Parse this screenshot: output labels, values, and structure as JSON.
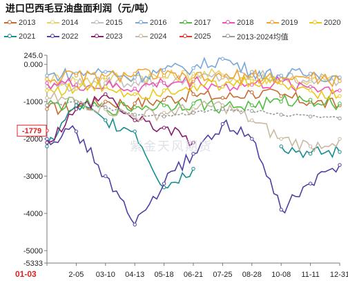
{
  "page": {
    "title": "进口巴西毛豆油盘面利润（元/吨）",
    "watermark": "紫金天风期货"
  },
  "colors": {
    "2013": "#c86a2e",
    "2014": "#e7d266",
    "2015": "#c0c0c0",
    "2016": "#7aa6d8",
    "2017": "#4fbd3e",
    "2018": "#f04fb6",
    "2019": "#f2a52f",
    "2020": "#e9c917",
    "2021": "#148e8e",
    "2022": "#4f3fa3",
    "2023": "#8a1b6e",
    "2024": "#c9b9a0",
    "2025": "#e23a2a",
    "2013-2024均值": "#9a9a9a"
  },
  "legend": [
    {
      "key": "2013",
      "label": "2013"
    },
    {
      "key": "2014",
      "label": "2014"
    },
    {
      "key": "2015",
      "label": "2015"
    },
    {
      "key": "2016",
      "label": "2016"
    },
    {
      "key": "2017",
      "label": "2017"
    },
    {
      "key": "2018",
      "label": "2018"
    },
    {
      "key": "2019",
      "label": "2019"
    },
    {
      "key": "2020",
      "label": "2020"
    },
    {
      "key": "2021",
      "label": "2021"
    },
    {
      "key": "2022",
      "label": "2022"
    },
    {
      "key": "2023",
      "label": "2023"
    },
    {
      "key": "2024",
      "label": "2024"
    },
    {
      "key": "2025",
      "label": "2025"
    },
    {
      "key": "2013-2024均值",
      "label": "2013-2024均值"
    }
  ],
  "chart_data": {
    "type": "line",
    "title": "进口巴西毛豆油盘面利润（元/吨）",
    "xlabel": "",
    "ylabel": "",
    "x_ticks": [
      "01-03",
      "2-05",
      "03-10",
      "04-13",
      "05-18",
      "06-21",
      "07-25",
      "08-28",
      "10-08",
      "11-11",
      "12-31"
    ],
    "y_ticks": [
      245.0,
      0,
      -1000,
      -2000,
      -3000,
      -4000,
      -5000,
      -5333
    ],
    "y_tick_labels": [
      "245.0",
      "0.000",
      "-1000",
      "-2000",
      "-3000",
      "-4000",
      "-5000",
      "-5333"
    ],
    "ylim": [
      -5333,
      245
    ],
    "current_value_label": "-1779",
    "grid": false,
    "legend_position": "top",
    "x_positions": [
      0,
      1,
      2,
      3,
      4,
      5,
      6,
      7,
      8,
      9,
      10
    ],
    "series": [
      {
        "name": "2013",
        "values": [
          -1200,
          -1150,
          -1000,
          -1050,
          -950,
          -800,
          -900,
          -750,
          -850,
          -1000,
          -1100
        ]
      },
      {
        "name": "2014",
        "values": [
          -350,
          -450,
          -400,
          -300,
          -350,
          -250,
          -300,
          -400,
          -350,
          -450,
          -400
        ]
      },
      {
        "name": "2015",
        "values": [
          -600,
          -550,
          -500,
          -450,
          -500,
          -400,
          -350,
          -300,
          -350,
          -400,
          -450
        ]
      },
      {
        "name": "2016",
        "values": [
          -300,
          -250,
          -200,
          -350,
          -150,
          -100,
          150,
          -200,
          -300,
          -250,
          -350
        ]
      },
      {
        "name": "2017",
        "values": [
          -1100,
          -1050,
          -1200,
          -1150,
          -1100,
          -1050,
          -1150,
          -1100,
          -1000,
          -950,
          -1050
        ]
      },
      {
        "name": "2018",
        "values": [
          -500,
          -550,
          -600,
          -650,
          -500,
          -450,
          -600,
          -550,
          -500,
          -600,
          -700
        ]
      },
      {
        "name": "2019",
        "values": [
          -400,
          -300,
          -350,
          -250,
          -300,
          -400,
          -350,
          -300,
          -400,
          -350,
          -450
        ]
      },
      {
        "name": "2020",
        "values": [
          -700,
          -650,
          -600,
          -800,
          -700,
          -550,
          -600,
          -450,
          -500,
          -700,
          -850
        ]
      },
      {
        "name": "2021",
        "values": [
          -2200,
          -1100,
          -1500,
          -1800,
          -3300,
          -2800,
          null,
          null,
          -2200,
          -2400,
          -2350
        ]
      },
      {
        "name": "2022",
        "values": [
          -2000,
          -1800,
          -3000,
          -4300,
          -3200,
          -2400,
          -1600,
          -2000,
          -3900,
          -3200,
          -2700
        ]
      },
      {
        "name": "2023",
        "values": [
          -2100,
          -1200,
          -800,
          -1500,
          -1700,
          -2100,
          null,
          null,
          null,
          null,
          null
        ]
      },
      {
        "name": "2024",
        "values": [
          -900,
          -1000,
          -1200,
          -1400,
          -1300,
          -1200,
          -1100,
          -1500,
          -2000,
          -2200,
          -2000
        ]
      },
      {
        "name": "2025",
        "values": [
          -1779,
          null,
          null,
          null,
          null,
          null,
          null,
          null,
          null,
          null,
          null
        ]
      },
      {
        "name": "2013-2024均值",
        "values": [
          -1100,
          -1000,
          -1150,
          -1350,
          -1400,
          -1300,
          -1200,
          -1250,
          -1350,
          -1400,
          -1450
        ]
      }
    ]
  }
}
